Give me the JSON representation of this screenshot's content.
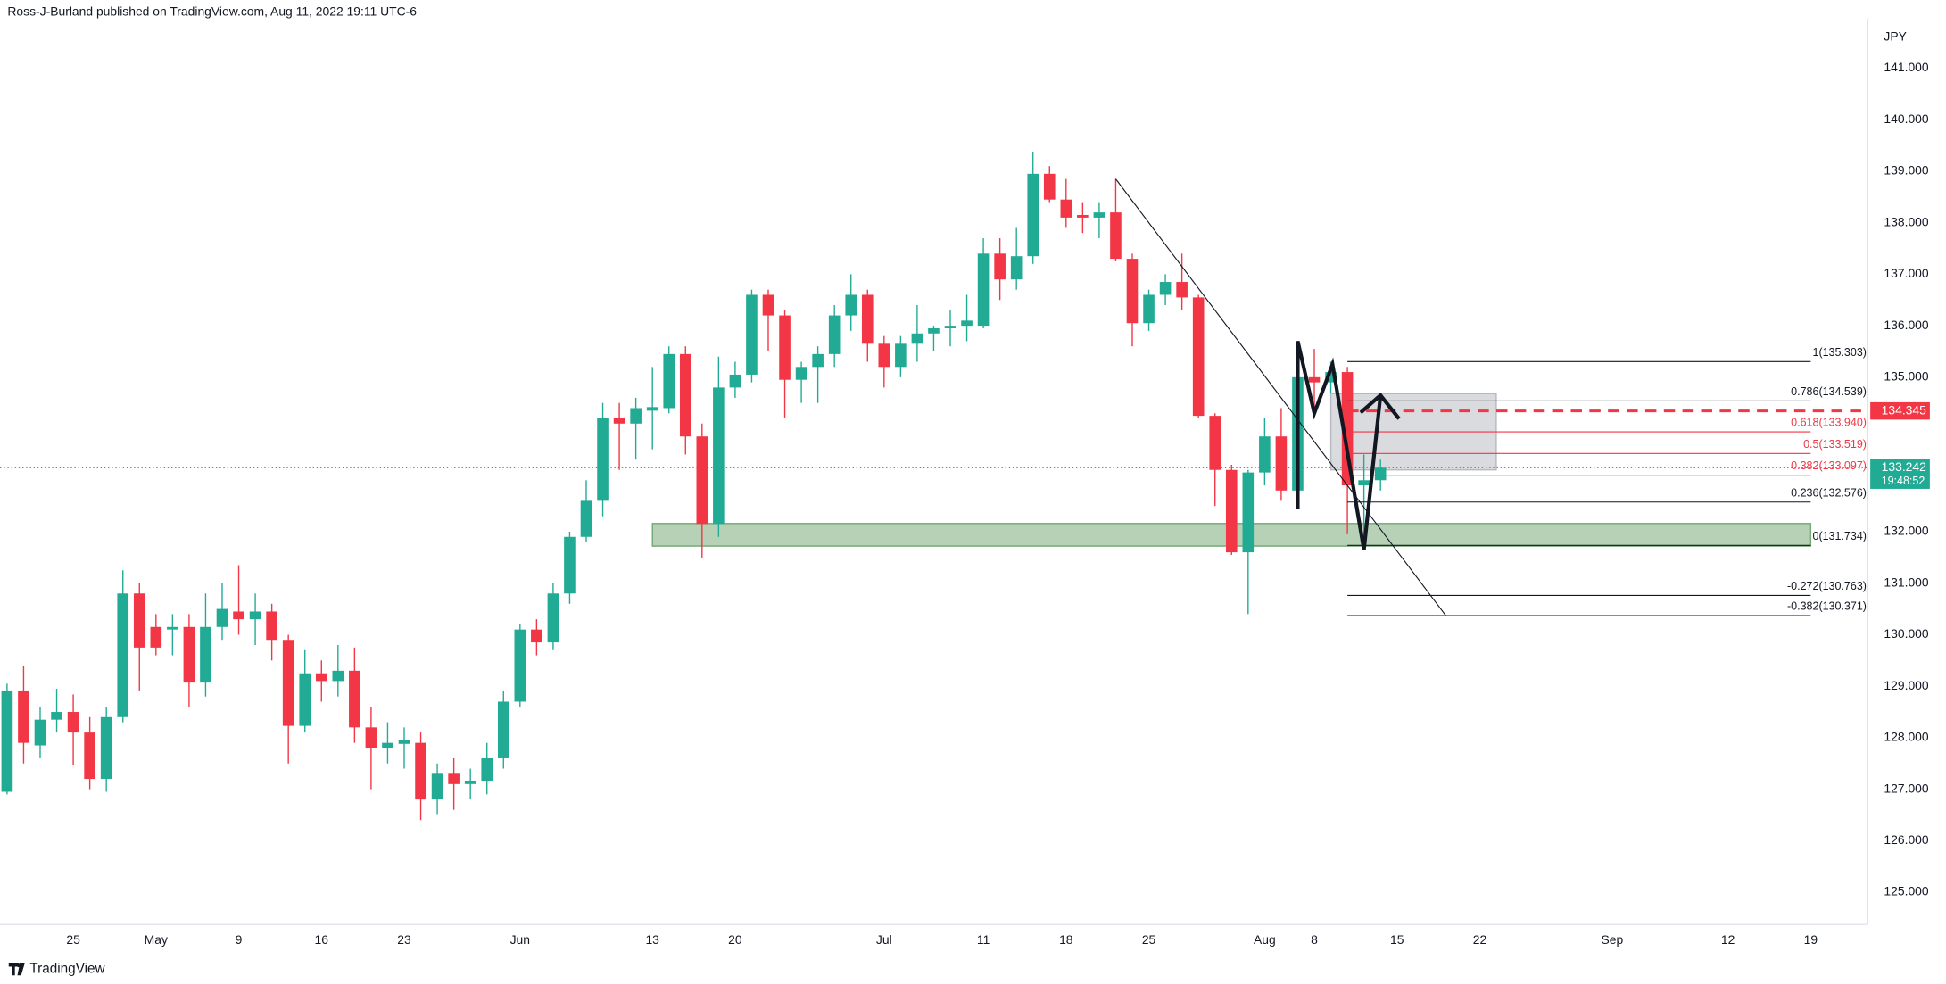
{
  "chart_data": {
    "type": "candlestick",
    "header": "Ross-J-Burland published on TradingView.com, Aug 11, 2022 19:11 UTC-6",
    "currency": "JPY",
    "brand": "TradingView",
    "up_color": "#22ab94",
    "down_color": "#f23645",
    "open": [
      126.95,
      128.9,
      127.85,
      128.35,
      128.5,
      128.1,
      127.2,
      128.4,
      130.8,
      130.15,
      130.1,
      130.15,
      129.07,
      130.15,
      130.45,
      130.3,
      130.45,
      129.9,
      128.23,
      129.25,
      129.1,
      129.3,
      128.2,
      127.8,
      127.88,
      127.9,
      126.8,
      127.3,
      127.1,
      127.15,
      127.6,
      128.7,
      130.1,
      129.85,
      130.8,
      131.9,
      132.6,
      134.2,
      134.1,
      134.35,
      134.4,
      135.45,
      133.85,
      132.15,
      134.8,
      135.05,
      136.6,
      136.2,
      134.95,
      135.2,
      135.45,
      136.2,
      136.6,
      135.65,
      135.2,
      135.65,
      135.85,
      135.95,
      136.0,
      136.0,
      137.4,
      136.9,
      137.35,
      138.95,
      138.45,
      138.15,
      138.1,
      138.2,
      137.3,
      136.05,
      136.6,
      136.85,
      136.55,
      134.25,
      133.2,
      131.6,
      133.15,
      133.85,
      132.8,
      135.0,
      134.9,
      135.1,
      132.9,
      133.0
    ],
    "high": [
      129.05,
      129.4,
      128.6,
      128.95,
      128.84,
      128.4,
      128.6,
      131.25,
      131.0,
      130.4,
      130.4,
      130.4,
      130.8,
      131.0,
      131.35,
      130.8,
      130.6,
      130.0,
      129.7,
      129.5,
      129.8,
      129.75,
      128.6,
      128.3,
      128.2,
      128.1,
      127.5,
      127.6,
      127.4,
      127.9,
      128.9,
      130.2,
      130.3,
      131.0,
      132.0,
      133.0,
      134.5,
      134.5,
      134.6,
      135.2,
      135.6,
      135.6,
      134.1,
      135.4,
      135.3,
      136.7,
      136.7,
      136.3,
      135.3,
      135.6,
      136.4,
      137.0,
      136.7,
      135.8,
      135.8,
      136.4,
      136.0,
      136.3,
      136.6,
      137.7,
      137.7,
      137.9,
      139.38,
      139.1,
      138.85,
      138.4,
      138.4,
      138.85,
      137.4,
      136.7,
      137.0,
      137.4,
      136.6,
      134.3,
      133.3,
      133.2,
      134.2,
      134.4,
      135.5,
      135.55,
      135.303,
      135.2,
      133.5,
      133.4
    ],
    "low": [
      126.9,
      127.5,
      127.6,
      128.1,
      127.46,
      127.0,
      126.95,
      128.3,
      128.9,
      129.6,
      129.6,
      128.6,
      128.8,
      129.9,
      130.0,
      129.8,
      129.5,
      127.5,
      128.1,
      128.7,
      128.8,
      127.9,
      127.0,
      127.5,
      127.4,
      126.4,
      126.5,
      126.6,
      126.8,
      126.9,
      127.4,
      128.6,
      129.6,
      129.7,
      130.6,
      131.8,
      132.3,
      133.2,
      133.4,
      133.6,
      134.3,
      133.5,
      131.5,
      131.9,
      134.6,
      134.9,
      135.5,
      134.2,
      134.5,
      134.5,
      135.2,
      135.9,
      135.3,
      134.8,
      135.0,
      135.3,
      135.5,
      135.6,
      135.7,
      135.95,
      136.5,
      136.7,
      137.2,
      138.4,
      137.9,
      137.8,
      137.7,
      137.25,
      135.6,
      135.9,
      136.4,
      136.3,
      134.2,
      132.5,
      131.55,
      130.4,
      132.9,
      132.6,
      132.5,
      134.4,
      134.7,
      131.95,
      131.734,
      132.8
    ],
    "close": [
      128.9,
      127.9,
      128.35,
      128.5,
      128.1,
      127.2,
      128.4,
      130.8,
      129.75,
      129.75,
      130.15,
      129.07,
      130.15,
      130.5,
      130.3,
      130.45,
      129.9,
      128.23,
      129.25,
      129.1,
      129.3,
      128.2,
      127.8,
      127.9,
      127.95,
      126.8,
      127.3,
      127.1,
      127.15,
      127.6,
      128.7,
      130.1,
      129.85,
      130.8,
      131.9,
      132.6,
      134.2,
      134.1,
      134.4,
      134.42,
      135.45,
      133.85,
      132.15,
      134.8,
      135.05,
      136.6,
      136.2,
      134.95,
      135.2,
      135.45,
      136.2,
      136.6,
      135.65,
      135.2,
      135.65,
      135.85,
      135.95,
      136.0,
      136.1,
      137.4,
      136.9,
      137.35,
      138.95,
      138.45,
      138.1,
      138.1,
      138.2,
      137.3,
      136.05,
      136.6,
      136.85,
      136.55,
      134.25,
      133.2,
      131.6,
      133.15,
      133.85,
      132.8,
      135.0,
      134.9,
      135.1,
      132.9,
      133.0,
      133.242
    ],
    "countdown": "19:48:52",
    "xlim": [
      -0.425,
      112.45
    ],
    "ylim": [
      124.373,
      141.964
    ],
    "xticks": [
      {
        "value": 4,
        "label": "25"
      },
      {
        "value": 9,
        "label": "May"
      },
      {
        "value": 14,
        "label": "9"
      },
      {
        "value": 19,
        "label": "16"
      },
      {
        "value": 24,
        "label": "23"
      },
      {
        "value": 31,
        "label": "Jun"
      },
      {
        "value": 39,
        "label": "13"
      },
      {
        "value": 44,
        "label": "20"
      },
      {
        "value": 53,
        "label": "Jul"
      },
      {
        "value": 59,
        "label": "11"
      },
      {
        "value": 64,
        "label": "18"
      },
      {
        "value": 69,
        "label": "25"
      },
      {
        "value": 76,
        "label": "Aug"
      },
      {
        "value": 79,
        "label": "8"
      },
      {
        "value": 84,
        "label": "15"
      },
      {
        "value": 89,
        "label": "22"
      },
      {
        "value": 97,
        "label": "Sep"
      },
      {
        "value": 104,
        "label": "12"
      },
      {
        "value": 109,
        "label": "19"
      }
    ],
    "yticks": [
      {
        "value": 125,
        "label": "125.000"
      },
      {
        "value": 126,
        "label": "126.000"
      },
      {
        "value": 127,
        "label": "127.000"
      },
      {
        "value": 128,
        "label": "128.000"
      },
      {
        "value": 129,
        "label": "129.000"
      },
      {
        "value": 130,
        "label": "130.000"
      },
      {
        "value": 131,
        "label": "131.000"
      },
      {
        "value": 132,
        "label": "132.000"
      },
      {
        "value": 135,
        "label": "135.000"
      },
      {
        "value": 136,
        "label": "136.000"
      },
      {
        "value": 137,
        "label": "137.000"
      },
      {
        "value": 138,
        "label": "138.000"
      },
      {
        "value": 139,
        "label": "139.000"
      },
      {
        "value": 140,
        "label": "140.000"
      },
      {
        "value": 141,
        "label": "141.000"
      }
    ],
    "grid": false,
    "alert_line": {
      "value": 134.345,
      "color": "#f23645",
      "x_start": 81
    },
    "fib": {
      "x": [
        81,
        109
      ],
      "levels": [
        {
          "label": "1(135.303)",
          "value": 135.303,
          "color": "#131722"
        },
        {
          "label": "0.786(134.539)",
          "value": 134.539,
          "color": "#131722"
        },
        {
          "label": "0.618(133.940)",
          "value": 133.94,
          "color": "#f23645"
        },
        {
          "label": "0.5(133.519)",
          "value": 133.519,
          "color": "#f23645"
        },
        {
          "label": "0.382(133.097)",
          "value": 133.097,
          "color": "#f23645"
        },
        {
          "label": "0.236(132.576)",
          "value": 132.576,
          "color": "#131722"
        },
        {
          "label": "0(131.734)",
          "value": 131.734,
          "color": "#131722"
        },
        {
          "label": "-0.272(130.763)",
          "value": 130.763,
          "color": "#131722"
        },
        {
          "label": "-0.382(130.371)",
          "value": 130.371,
          "color": "#131722"
        }
      ]
    },
    "zone": {
      "x": [
        39,
        109
      ],
      "y": [
        131.72,
        132.16
      ],
      "color": "#4c8c4c"
    },
    "box": {
      "x": [
        80,
        90
      ],
      "y": [
        133.2,
        134.68
      ],
      "color": "#9598a1"
    },
    "trendline": {
      "x": [
        67,
        86.95
      ],
      "y": [
        138.85,
        130.37
      ]
    },
    "zigzag": {
      "x": [
        78,
        78,
        79,
        80.1,
        82,
        83
      ],
      "y": [
        132.45,
        135.7,
        134.3,
        135.25,
        131.65,
        134.65
      ]
    }
  }
}
